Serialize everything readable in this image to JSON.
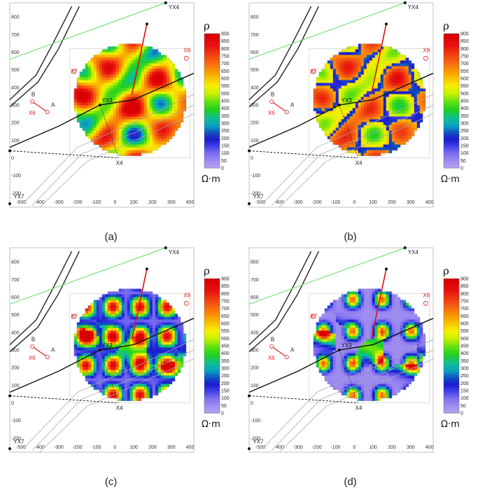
{
  "chart_data": [
    {
      "type": "heatmap",
      "panel_label": "(a)",
      "map_state": "high",
      "colorbar": {
        "title": "ρ",
        "unit": "Ω·m",
        "ticks": [
          "900",
          "850",
          "800",
          "750",
          "700",
          "650",
          "600",
          "550",
          "500",
          "450",
          "400",
          "350",
          "300",
          "250",
          "200",
          "150",
          "100",
          "50",
          "0"
        ],
        "range": [
          0,
          900
        ]
      },
      "xticks": [
        "-500",
        "-400",
        "-300",
        "-200",
        "-100",
        "0",
        "100",
        "200",
        "300",
        "400"
      ],
      "yticks": [
        "800",
        "700",
        "600",
        "500",
        "400",
        "300",
        "200",
        "100",
        "0",
        "-100",
        "-200"
      ],
      "labels": {
        "yx4": "YX4",
        "yx3": "YX3",
        "yx7": "YX7",
        "x4": "X4",
        "x6": "X6",
        "x7": "X7",
        "x8": "X8",
        "a": "A",
        "b": "B"
      }
    },
    {
      "type": "heatmap",
      "panel_label": "(b)",
      "map_state": "medium",
      "colorbar": {
        "title": "ρ",
        "unit": "Ω·m",
        "ticks": [
          "900",
          "850",
          "800",
          "750",
          "700",
          "650",
          "600",
          "550",
          "500",
          "450",
          "400",
          "350",
          "300",
          "250",
          "200",
          "150",
          "100",
          "50",
          "0"
        ],
        "range": [
          0,
          900
        ]
      },
      "xticks": [
        "-500",
        "-400",
        "-300",
        "-200",
        "-100",
        "0",
        "100",
        "200",
        "300",
        "400"
      ],
      "yticks": [
        "800",
        "700",
        "600",
        "500",
        "400",
        "300",
        "200",
        "100",
        "0",
        "-100",
        "-200"
      ],
      "labels": {
        "yx4": "YX4",
        "yx3": "YX3",
        "yx7": "YX7",
        "x4": "X4",
        "x6": "X6",
        "x7": "X7",
        "x8": "X8",
        "a": "A",
        "b": "B"
      }
    },
    {
      "type": "heatmap",
      "panel_label": "(c)",
      "map_state": "low",
      "colorbar": {
        "title": "ρ",
        "unit": "Ω·m",
        "ticks": [
          "900",
          "850",
          "800",
          "750",
          "700",
          "650",
          "600",
          "550",
          "500",
          "450",
          "400",
          "350",
          "300",
          "250",
          "200",
          "150",
          "100",
          "50",
          "0"
        ],
        "range": [
          0,
          900
        ]
      },
      "xticks": [
        "-500",
        "-400",
        "-300",
        "-200",
        "-100",
        "0",
        "100",
        "200",
        "300",
        "400"
      ],
      "yticks": [
        "800",
        "700",
        "600",
        "500",
        "400",
        "300",
        "200",
        "100",
        "0",
        "-100",
        "-200"
      ],
      "labels": {
        "yx4": "YX4",
        "yx3": "YX3",
        "yx7": "YX7",
        "x4": "X4",
        "x6": "X6",
        "x7": "X7",
        "x8": "X8",
        "a": "A",
        "b": "B"
      }
    },
    {
      "type": "heatmap",
      "panel_label": "(d)",
      "map_state": "lowest",
      "colorbar": {
        "title": "ρ",
        "unit": "Ω·m",
        "ticks": [
          "900",
          "850",
          "800",
          "750",
          "700",
          "650",
          "600",
          "550",
          "500",
          "450",
          "400",
          "350",
          "300",
          "250",
          "200",
          "150",
          "100",
          "50",
          "0"
        ],
        "range": [
          0,
          900
        ]
      },
      "xticks": [
        "-500",
        "-400",
        "-300",
        "-200",
        "-100",
        "0",
        "100",
        "200",
        "300",
        "400"
      ],
      "yticks": [
        "800",
        "700",
        "600",
        "500",
        "400",
        "300",
        "200",
        "100",
        "0",
        "-100",
        "-200"
      ],
      "labels": {
        "yx4": "YX4",
        "yx3": "YX3",
        "yx7": "YX7",
        "x4": "X4",
        "x6": "X6",
        "x7": "X7",
        "x8": "X8",
        "a": "A",
        "b": "B"
      }
    }
  ]
}
